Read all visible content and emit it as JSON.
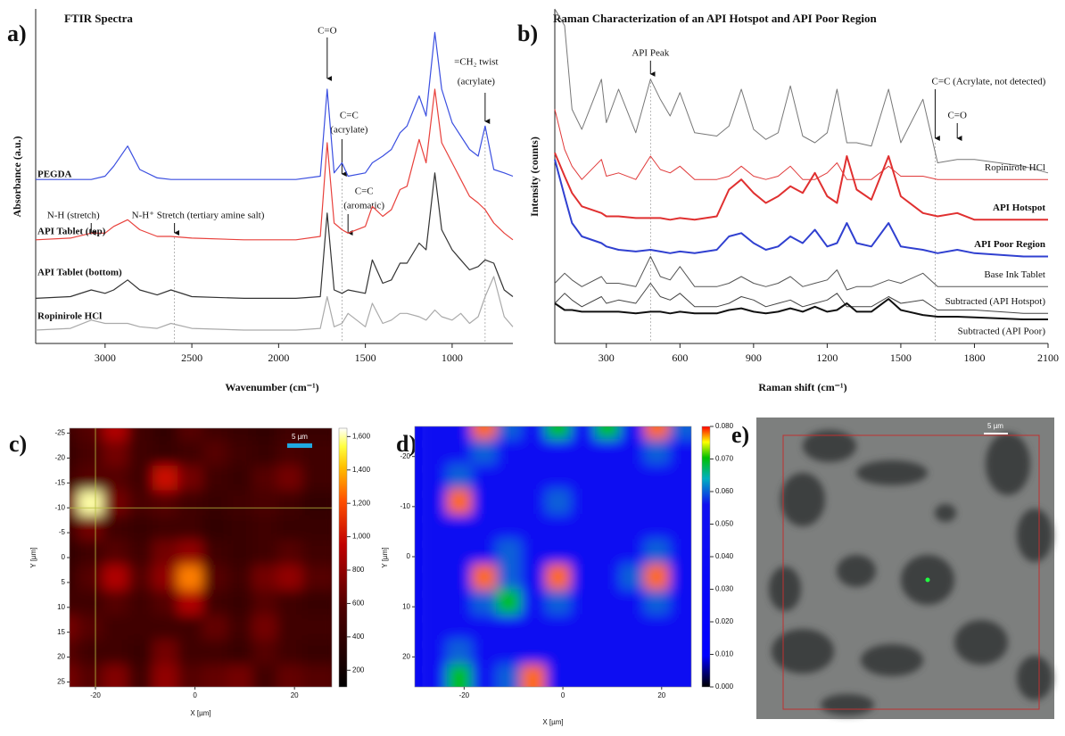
{
  "chart_data": [
    {
      "type": "line",
      "label": "a)",
      "title": "FTIR Spectra",
      "xlabel": "Wavenumber (cm⁻¹)",
      "ylabel": "Absorbance (a.u.)",
      "xlim": [
        3400,
        650
      ],
      "ylim": [
        0,
        10
      ],
      "xticks": [
        3000,
        2500,
        2000,
        1500,
        1000
      ],
      "x": [
        3400,
        3200,
        3080,
        3000,
        2950,
        2870,
        2800,
        2700,
        2620,
        2500,
        2200,
        1900,
        1760,
        1720,
        1680,
        1635,
        1600,
        1500,
        1460,
        1400,
        1350,
        1300,
        1260,
        1190,
        1150,
        1100,
        1060,
        1000,
        950,
        900,
        850,
        810,
        760,
        700,
        650
      ],
      "series": [
        {
          "name": "PEGDA",
          "color": "#3b4fe0",
          "values": [
            4.9,
            4.9,
            4.9,
            5.0,
            5.3,
            5.9,
            5.2,
            4.95,
            4.9,
            4.9,
            4.9,
            4.9,
            5.0,
            7.6,
            5.1,
            5.4,
            5.0,
            5.1,
            5.4,
            5.6,
            5.8,
            6.3,
            6.5,
            7.4,
            6.8,
            9.3,
            7.6,
            6.6,
            6.2,
            5.8,
            5.6,
            6.5,
            5.2,
            5.1,
            5.0
          ]
        },
        {
          "name": "API Tablet (top)",
          "color": "#e8413c",
          "values": [
            3.1,
            3.15,
            3.3,
            3.3,
            3.5,
            3.7,
            3.4,
            3.2,
            3.2,
            3.15,
            3.1,
            3.1,
            3.2,
            6.0,
            3.6,
            3.4,
            3.3,
            3.5,
            4.1,
            3.8,
            4.0,
            4.6,
            4.7,
            6.1,
            5.4,
            7.6,
            6.0,
            5.4,
            4.9,
            4.4,
            4.2,
            4.0,
            3.6,
            3.3,
            3.1
          ]
        },
        {
          "name": "API Tablet (bottom)",
          "color": "#333333",
          "values": [
            1.35,
            1.4,
            1.6,
            1.5,
            1.6,
            1.9,
            1.6,
            1.45,
            1.6,
            1.4,
            1.35,
            1.35,
            1.4,
            3.9,
            1.6,
            1.5,
            1.6,
            1.5,
            2.5,
            1.8,
            1.9,
            2.4,
            2.4,
            3.0,
            2.8,
            5.1,
            3.4,
            2.8,
            2.5,
            2.2,
            2.3,
            2.5,
            2.4,
            1.6,
            1.4
          ]
        },
        {
          "name": "Ropinirole HCl",
          "color": "#aaaaaa",
          "values": [
            0.4,
            0.45,
            0.7,
            0.6,
            0.6,
            0.6,
            0.5,
            0.45,
            0.6,
            0.45,
            0.4,
            0.4,
            0.45,
            1.4,
            0.5,
            0.6,
            0.9,
            0.5,
            1.2,
            0.6,
            0.7,
            0.9,
            0.9,
            0.8,
            0.7,
            1.0,
            0.8,
            0.7,
            0.9,
            0.6,
            0.8,
            1.4,
            2.0,
            0.8,
            0.5
          ]
        }
      ],
      "annotations": [
        {
          "lines": [
            "C=O"
          ],
          "x": 1720
        },
        {
          "lines": [
            "C=C",
            "(acrylate)"
          ],
          "x": 1635
        },
        {
          "lines": [
            "=CH₂ twist",
            "(acrylate)"
          ],
          "x": 810
        },
        {
          "lines": [
            "N-H (stretch)"
          ],
          "x": 3080
        },
        {
          "lines": [
            "N-H⁺ Stretch (tertiary amine salt)"
          ],
          "x": 2600
        },
        {
          "lines": [
            "C=C",
            "(aromatic)"
          ],
          "x": 1600
        }
      ]
    },
    {
      "type": "line",
      "label": "b)",
      "title": "Raman Characterization of an API Hotspot and API Poor Region",
      "xlabel": "Raman shift (cm⁻¹)",
      "ylabel": "Intensity (counts)",
      "xlim": [
        90,
        2100
      ],
      "ylim": [
        0,
        10
      ],
      "xticks": [
        300,
        600,
        900,
        1200,
        1500,
        1800,
        2100
      ],
      "x": [
        90,
        130,
        160,
        200,
        280,
        300,
        350,
        420,
        480,
        520,
        560,
        600,
        660,
        750,
        800,
        850,
        900,
        950,
        1000,
        1050,
        1100,
        1150,
        1200,
        1240,
        1280,
        1320,
        1380,
        1450,
        1500,
        1590,
        1650,
        1730,
        1800,
        1900,
        2000,
        2100
      ],
      "series": [
        {
          "color": "#777777",
          "values": [
            10,
            9.5,
            7.0,
            6.4,
            7.9,
            6.6,
            7.6,
            6.3,
            7.9,
            7.3,
            6.8,
            7.5,
            6.3,
            6.2,
            6.5,
            7.6,
            6.4,
            6.1,
            6.3,
            7.7,
            6.2,
            6.0,
            6.3,
            7.6,
            6.0,
            6.0,
            5.9,
            7.6,
            6.0,
            7.3,
            5.4,
            5.5,
            5.5,
            5.4,
            5.3,
            5.1
          ]
        },
        {
          "name": "Ropinirole HCl",
          "color": "#e03a3a",
          "values": [
            7.0,
            5.8,
            5.3,
            4.9,
            5.5,
            5.0,
            5.1,
            4.9,
            5.6,
            5.2,
            5.1,
            5.3,
            4.9,
            4.9,
            5.0,
            5.3,
            5.0,
            4.9,
            5.0,
            5.3,
            4.9,
            4.9,
            5.1,
            5.4,
            4.9,
            4.9,
            4.9,
            5.3,
            5.0,
            5.0,
            4.9,
            4.9,
            4.9,
            4.9,
            4.9,
            4.9
          ]
        },
        {
          "name": "API Hotspot",
          "color": "#e03030",
          "values": [
            5.7,
            5.0,
            4.5,
            4.1,
            3.9,
            3.8,
            3.8,
            3.75,
            3.75,
            3.75,
            3.7,
            3.75,
            3.7,
            3.8,
            4.6,
            4.9,
            4.5,
            4.2,
            4.4,
            4.7,
            4.5,
            5.1,
            4.4,
            4.2,
            5.6,
            4.6,
            4.3,
            5.6,
            4.4,
            3.9,
            3.8,
            3.9,
            3.7,
            3.7,
            3.7,
            3.7
          ]
        },
        {
          "name": "API Poor Region",
          "color": "#3040d0",
          "values": [
            5.5,
            4.4,
            3.6,
            3.2,
            3.0,
            2.9,
            2.8,
            2.75,
            2.8,
            2.75,
            2.7,
            2.75,
            2.7,
            2.8,
            3.2,
            3.3,
            3.0,
            2.8,
            2.9,
            3.2,
            3.0,
            3.4,
            2.9,
            3.0,
            3.6,
            3.0,
            2.9,
            3.6,
            2.9,
            2.8,
            2.7,
            2.8,
            2.7,
            2.65,
            2.6,
            2.6
          ]
        },
        {
          "name": "Base Ink Tablet",
          "color": "#555555",
          "values": [
            1.8,
            2.1,
            1.9,
            1.7,
            2.0,
            1.8,
            1.8,
            1.7,
            2.6,
            2.0,
            1.9,
            2.3,
            1.7,
            1.7,
            1.8,
            2.0,
            1.8,
            1.7,
            1.8,
            2.0,
            1.7,
            1.8,
            1.9,
            2.2,
            1.6,
            1.7,
            1.7,
            1.9,
            1.8,
            2.1,
            1.7,
            1.7,
            1.7,
            1.7,
            1.7,
            1.7
          ]
        },
        {
          "name": "Subtracted (API Hotspot)",
          "color": "#444444",
          "values": [
            1.2,
            1.5,
            1.3,
            1.1,
            1.4,
            1.2,
            1.3,
            1.2,
            1.8,
            1.4,
            1.3,
            1.5,
            1.1,
            1.1,
            1.2,
            1.4,
            1.3,
            1.1,
            1.2,
            1.3,
            1.1,
            1.2,
            1.3,
            1.5,
            1.1,
            1.1,
            1.1,
            1.4,
            1.2,
            1.3,
            1.0,
            1.0,
            1.0,
            0.95,
            0.9,
            0.9
          ]
        },
        {
          "name": "Subtracted (API Poor)",
          "color": "#111111",
          "values": [
            1.2,
            1.0,
            1.0,
            0.95,
            0.95,
            0.95,
            0.95,
            0.9,
            0.95,
            0.95,
            0.9,
            0.95,
            0.9,
            0.9,
            1.0,
            1.05,
            0.95,
            0.9,
            0.95,
            1.05,
            0.95,
            1.1,
            0.95,
            1.0,
            1.2,
            0.95,
            0.95,
            1.33,
            1.0,
            0.85,
            0.8,
            0.8,
            0.78,
            0.75,
            0.72,
            0.72
          ]
        }
      ],
      "annotations": [
        {
          "lines": [
            "API Peak"
          ],
          "x": 480
        },
        {
          "lines": [
            "C=C (Acrylate, not detected)"
          ],
          "x": 1640
        },
        {
          "lines": [
            "C=O"
          ],
          "x": 1730
        }
      ]
    },
    {
      "type": "heatmap",
      "label": "c)",
      "xlabel": "X [µm]",
      "ylabel": "Y [µm]",
      "scale_bar": "5 µm",
      "xlim": [
        -25.2,
        27.5
      ],
      "ylim": [
        -26,
        26
      ],
      "xticks": [
        -20,
        0,
        20
      ],
      "yticks": [
        -25,
        -20,
        -15,
        -10,
        -5,
        0,
        5,
        10,
        15,
        20,
        25
      ],
      "crosshair": {
        "x": -20,
        "y": -10
      },
      "x": [
        -25,
        -20,
        -15,
        -10,
        -5,
        0,
        5,
        10,
        15,
        20,
        25
      ],
      "y": [
        -25,
        -20,
        -15,
        -10,
        -5,
        0,
        5,
        10,
        15,
        20,
        25
      ],
      "clim": [
        100,
        1650
      ],
      "cticks": [
        200,
        400,
        600,
        800,
        {
          "value": 1000,
          "label": "1,000"
        },
        {
          "value": 1200,
          "label": "1,200"
        },
        {
          "value": 1400,
          "label": "1,400"
        },
        {
          "value": 1600,
          "label": "1,600"
        }
      ],
      "values": [
        [
          500,
          600,
          900,
          500,
          400,
          600,
          500,
          450,
          400,
          500,
          450
        ],
        [
          450,
          550,
          700,
          500,
          450,
          500,
          600,
          500,
          450,
          550,
          500
        ],
        [
          500,
          600,
          600,
          500,
          1000,
          700,
          500,
          450,
          600,
          700,
          500
        ],
        [
          700,
          1600,
          700,
          550,
          600,
          500,
          450,
          500,
          550,
          500,
          400
        ],
        [
          500,
          700,
          500,
          450,
          500,
          500,
          400,
          450,
          500,
          450,
          450
        ],
        [
          400,
          500,
          600,
          500,
          700,
          800,
          500,
          450,
          500,
          600,
          500
        ],
        [
          450,
          600,
          900,
          600,
          800,
          1300,
          600,
          500,
          700,
          800,
          600
        ],
        [
          500,
          500,
          600,
          500,
          600,
          900,
          500,
          450,
          600,
          500,
          450
        ],
        [
          700,
          600,
          500,
          500,
          500,
          500,
          650,
          500,
          700,
          500,
          500
        ],
        [
          600,
          500,
          500,
          450,
          700,
          500,
          500,
          450,
          600,
          500,
          450
        ],
        [
          700,
          600,
          750,
          500,
          800,
          600,
          650,
          700,
          500,
          650,
          600
        ]
      ]
    },
    {
      "type": "heatmap",
      "label": "d)",
      "xlabel": "X [µm]",
      "ylabel": "Y [µm]",
      "xlim": [
        -30,
        26
      ],
      "ylim": [
        -26,
        26
      ],
      "xticks": [
        -20,
        0,
        20
      ],
      "yticks": [
        -20,
        -10,
        0,
        10,
        20
      ],
      "x": [
        -25,
        -20,
        -15,
        -10,
        -5,
        0,
        5,
        10,
        15,
        20,
        25
      ],
      "y": [
        -25,
        -20,
        -15,
        -10,
        -5,
        0,
        5,
        10,
        15,
        20,
        25
      ],
      "clim": [
        0,
        0.08
      ],
      "cticks": [
        {
          "value": 0,
          "label": "0.000"
        },
        {
          "value": 0.01,
          "label": "0.010"
        },
        {
          "value": 0.02,
          "label": "0.020"
        },
        {
          "value": 0.03,
          "label": "0.030"
        },
        {
          "value": 0.04,
          "label": "0.040"
        },
        {
          "value": 0.05,
          "label": "0.050"
        },
        {
          "value": 0.06,
          "label": "0.060"
        },
        {
          "value": 0.07,
          "label": "0.070"
        },
        {
          "value": 0.08,
          "label": "0.080"
        }
      ],
      "values": [
        [
          0.05,
          0.05,
          0.078,
          0.06,
          0.05,
          0.07,
          0.05,
          0.07,
          0.05,
          0.078,
          0.06
        ],
        [
          0.05,
          0.05,
          0.06,
          0.05,
          0.05,
          0.05,
          0.05,
          0.05,
          0.05,
          0.06,
          0.05
        ],
        [
          0.05,
          0.06,
          0.05,
          0.05,
          0.05,
          0.05,
          0.05,
          0.05,
          0.05,
          0.05,
          0.05
        ],
        [
          0.05,
          0.078,
          0.05,
          0.05,
          0.05,
          0.06,
          0.05,
          0.05,
          0.05,
          0.05,
          0.05
        ],
        [
          0.05,
          0.05,
          0.05,
          0.05,
          0.05,
          0.05,
          0.05,
          0.05,
          0.05,
          0.05,
          0.05
        ],
        [
          0.05,
          0.05,
          0.05,
          0.06,
          0.05,
          0.05,
          0.05,
          0.05,
          0.05,
          0.06,
          0.05
        ],
        [
          0.05,
          0.05,
          0.078,
          0.06,
          0.05,
          0.078,
          0.05,
          0.05,
          0.06,
          0.078,
          0.05
        ],
        [
          0.05,
          0.05,
          0.06,
          0.07,
          0.05,
          0.06,
          0.05,
          0.05,
          0.05,
          0.06,
          0.05
        ],
        [
          0.05,
          0.05,
          0.05,
          0.05,
          0.05,
          0.05,
          0.05,
          0.05,
          0.05,
          0.05,
          0.05
        ],
        [
          0.05,
          0.06,
          0.05,
          0.05,
          0.05,
          0.05,
          0.05,
          0.05,
          0.05,
          0.05,
          0.05
        ],
        [
          0.05,
          0.07,
          0.05,
          0.06,
          0.078,
          0.05,
          0.05,
          0.05,
          0.05,
          0.05,
          0.05
        ]
      ]
    },
    {
      "type": "image",
      "label": "e)",
      "scale_bar": "5 µm"
    }
  ]
}
